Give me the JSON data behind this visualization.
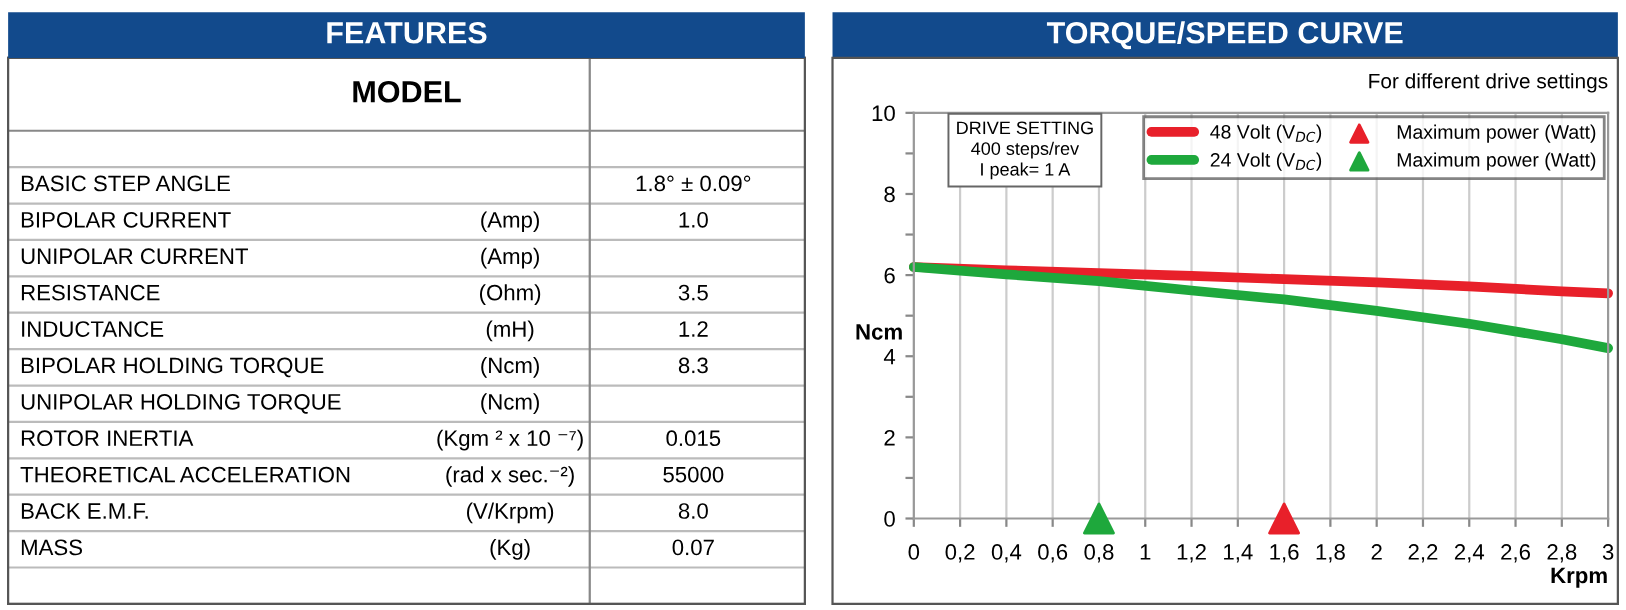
{
  "chart_data": [
    {
      "type": "other",
      "title": "FEATURES",
      "categories": [
        "MODEL",
        null,
        "BASIC STEP ANGLE",
        "BIPOLAR CURRENT",
        "UNIPOLAR CURRENT",
        "RESISTANCE",
        "INDUCTANCE",
        "BIPOLAR HOLDING TORQUE",
        "UNIPOLAR HOLDING TORQUE",
        "ROTOR INERTIA",
        "THEORETICAL ACCELERATION",
        "BACK E.M.F.",
        "MASS",
        null
      ],
      "cell_labels": [
        [
          null,
          null
        ],
        [
          null,
          null
        ],
        [
          null,
          "1.8° ± 0.09°"
        ],
        [
          "(Amp)",
          "1.0"
        ],
        [
          "(Amp)",
          null
        ],
        [
          "(Ohm)",
          "3.5"
        ],
        [
          "(mH)",
          "1.2"
        ],
        [
          "(Ncm)",
          "8.3"
        ],
        [
          "(Ncm)",
          null
        ],
        [
          "(Kgm ² x 10 ⁻⁷)",
          "0.015"
        ],
        [
          "(rad x sec.⁻²)",
          "55000"
        ],
        [
          "(V/Krpm)",
          "8.0"
        ],
        [
          "(Kg)",
          "0.07"
        ],
        [
          null,
          null
        ]
      ]
    },
    {
      "type": "line",
      "title": "TORQUE/SPEED CURVE",
      "xlabel": "Krpm",
      "ylabel": "Ncm",
      "annotations": [
        "For different drive settings",
        "DRIVE SETTING\n400 steps/rev\nI peak= 1 A"
      ],
      "series": [
        {
          "name": "48 Volt (V$_{DC}$)",
          "color": "#e8202a",
          "x": [
            0,
            0.4,
            0.8,
            1.2,
            1.6,
            2.0,
            2.4,
            2.8,
            3.0
          ],
          "values": [
            6.2,
            6.12,
            6.05,
            5.98,
            5.9,
            5.82,
            5.72,
            5.6,
            5.55
          ]
        },
        {
          "name": "24 Volt (V$_{DC}$)",
          "color": "#1ea83c",
          "x": [
            0,
            0.4,
            0.8,
            1.2,
            1.6,
            2.0,
            2.4,
            2.8,
            3.0
          ],
          "values": [
            6.2,
            6.02,
            5.85,
            5.62,
            5.4,
            5.12,
            4.8,
            4.42,
            4.2
          ]
        },
        {
          "type": "scatter",
          "marker": "triangle",
          "name": "Maximum power (Watt)",
          "color": "#e8202a",
          "x": [
            1.6
          ],
          "values": [
            0
          ]
        },
        {
          "type": "scatter",
          "marker": "triangle",
          "name": "Maximum power (Watt)",
          "color": "#1ea83c",
          "x": [
            0.8
          ],
          "values": [
            0
          ]
        }
      ],
      "xlim": [
        0,
        3
      ],
      "ylim": [
        0,
        10
      ],
      "xticks": [
        0,
        {
          "value": 0.2,
          "label": "0,2"
        },
        {
          "value": 0.4,
          "label": "0,4"
        },
        {
          "value": 0.6,
          "label": "0,6"
        },
        {
          "value": 0.8,
          "label": "0,8"
        },
        1,
        {
          "value": 1.2,
          "label": "1,2"
        },
        {
          "value": 1.4,
          "label": "1,4"
        },
        {
          "value": 1.6,
          "label": "1,6"
        },
        {
          "value": 1.8,
          "label": "1,8"
        },
        2,
        {
          "value": 2.2,
          "label": "2,2"
        },
        {
          "value": 2.4,
          "label": "2,4"
        },
        {
          "value": 2.6,
          "label": "2,6"
        },
        {
          "value": 2.8,
          "label": "2,8"
        },
        3
      ],
      "yticks": [
        0,
        {
          "value": 1,
          "label": null
        },
        2,
        {
          "value": 3,
          "label": null
        },
        4,
        {
          "value": 5,
          "label": null
        },
        6,
        {
          "value": 7,
          "label": null
        },
        8,
        {
          "value": 9,
          "label": null
        },
        10
      ],
      "grid": "x",
      "legend": "top right"
    }
  ]
}
